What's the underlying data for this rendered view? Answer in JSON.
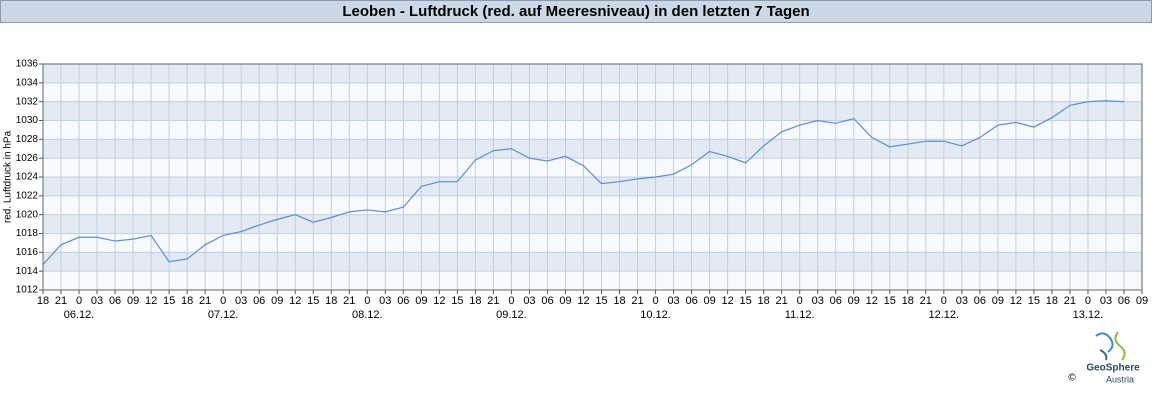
{
  "chart_data": {
    "type": "line",
    "title": "Leoben - Luftdruck (red. auf Meeresniveau) in den letzten 7 Tagen",
    "y_label": "red. Luftdruck in hPa",
    "x": [
      0,
      3,
      6,
      9,
      12,
      15,
      18,
      21,
      24,
      27,
      30,
      33,
      36,
      39,
      42,
      45,
      48,
      51,
      54,
      57,
      60,
      63,
      66,
      69,
      72,
      75,
      78,
      81,
      84,
      87,
      90,
      93,
      96,
      99,
      102,
      105,
      108,
      111,
      114,
      117,
      120,
      123,
      126,
      129,
      132,
      135,
      138,
      141,
      144,
      147,
      150,
      153,
      156,
      159,
      162,
      165,
      168,
      171,
      174,
      177,
      180
    ],
    "series": [
      {
        "name": "Luftdruck",
        "color": "#5b8ed6",
        "values": [
          1014.7,
          1016.8,
          1017.6,
          1017.6,
          1017.2,
          1017.4,
          1017.8,
          1015.0,
          1015.3,
          1016.8,
          1017.8,
          1018.2,
          1018.9,
          1019.5,
          1020.0,
          1019.2,
          1019.7,
          1020.3,
          1020.5,
          1020.3,
          1020.8,
          1023.0,
          1023.5,
          1023.5,
          1025.8,
          1026.8,
          1027.0,
          1026.0,
          1025.7,
          1026.2,
          1025.2,
          1023.3,
          1023.5,
          1023.8,
          1024.0,
          1024.3,
          1025.3,
          1026.7,
          1026.2,
          1025.5,
          1027.3,
          1028.8,
          1029.5,
          1030.0,
          1029.7,
          1030.2,
          1028.2,
          1027.2,
          1027.5,
          1027.8,
          1027.8,
          1027.3,
          1028.2,
          1029.5,
          1029.8,
          1029.3,
          1030.3,
          1031.6,
          1032.0,
          1032.1,
          1032.0
        ]
      }
    ],
    "xlim": [
      0,
      183
    ],
    "xticks": [
      {
        "value": 0,
        "label": "18"
      },
      {
        "value": 3,
        "label": "21"
      },
      {
        "value": 6,
        "label": "0"
      },
      {
        "value": 9,
        "label": "03"
      },
      {
        "value": 12,
        "label": "06"
      },
      {
        "value": 15,
        "label": "09"
      },
      {
        "value": 18,
        "label": "12"
      },
      {
        "value": 21,
        "label": "15"
      },
      {
        "value": 24,
        "label": "18"
      },
      {
        "value": 27,
        "label": "21"
      },
      {
        "value": 30,
        "label": "0"
      },
      {
        "value": 33,
        "label": "03"
      },
      {
        "value": 36,
        "label": "06"
      },
      {
        "value": 39,
        "label": "09"
      },
      {
        "value": 42,
        "label": "12"
      },
      {
        "value": 45,
        "label": "15"
      },
      {
        "value": 48,
        "label": "18"
      },
      {
        "value": 51,
        "label": "21"
      },
      {
        "value": 54,
        "label": "0"
      },
      {
        "value": 57,
        "label": "03"
      },
      {
        "value": 60,
        "label": "06"
      },
      {
        "value": 63,
        "label": "09"
      },
      {
        "value": 66,
        "label": "12"
      },
      {
        "value": 69,
        "label": "15"
      },
      {
        "value": 72,
        "label": "18"
      },
      {
        "value": 75,
        "label": "21"
      },
      {
        "value": 78,
        "label": "0"
      },
      {
        "value": 81,
        "label": "03"
      },
      {
        "value": 84,
        "label": "06"
      },
      {
        "value": 87,
        "label": "09"
      },
      {
        "value": 90,
        "label": "12"
      },
      {
        "value": 93,
        "label": "15"
      },
      {
        "value": 96,
        "label": "18"
      },
      {
        "value": 99,
        "label": "21"
      },
      {
        "value": 102,
        "label": "0"
      },
      {
        "value": 105,
        "label": "03"
      },
      {
        "value": 108,
        "label": "06"
      },
      {
        "value": 111,
        "label": "09"
      },
      {
        "value": 114,
        "label": "12"
      },
      {
        "value": 117,
        "label": "15"
      },
      {
        "value": 120,
        "label": "18"
      },
      {
        "value": 123,
        "label": "21"
      },
      {
        "value": 126,
        "label": "0"
      },
      {
        "value": 129,
        "label": "03"
      },
      {
        "value": 132,
        "label": "06"
      },
      {
        "value": 135,
        "label": "09"
      },
      {
        "value": 138,
        "label": "12"
      },
      {
        "value": 141,
        "label": "15"
      },
      {
        "value": 144,
        "label": "18"
      },
      {
        "value": 147,
        "label": "21"
      },
      {
        "value": 150,
        "label": "0"
      },
      {
        "value": 153,
        "label": "03"
      },
      {
        "value": 156,
        "label": "06"
      },
      {
        "value": 159,
        "label": "09"
      },
      {
        "value": 162,
        "label": "12"
      },
      {
        "value": 165,
        "label": "15"
      },
      {
        "value": 168,
        "label": "18"
      },
      {
        "value": 171,
        "label": "21"
      },
      {
        "value": 174,
        "label": "0"
      },
      {
        "value": 177,
        "label": "03"
      },
      {
        "value": 180,
        "label": "06"
      },
      {
        "value": 183,
        "label": "09"
      }
    ],
    "date_labels": [
      {
        "value": 6,
        "label": "06.12."
      },
      {
        "value": 30,
        "label": "07.12."
      },
      {
        "value": 54,
        "label": "08.12."
      },
      {
        "value": 78,
        "label": "09.12."
      },
      {
        "value": 102,
        "label": "10.12."
      },
      {
        "value": 126,
        "label": "11.12."
      },
      {
        "value": 150,
        "label": "12.12."
      },
      {
        "value": 174,
        "label": "13.12."
      }
    ],
    "ylim": [
      1012,
      1036
    ],
    "yticks": [
      1012,
      1014,
      1016,
      1018,
      1020,
      1022,
      1024,
      1026,
      1028,
      1030,
      1032,
      1034,
      1036
    ],
    "grid": true,
    "logo": {
      "name": "GeoSphere",
      "sub": "Austria",
      "copyright": "©"
    }
  }
}
